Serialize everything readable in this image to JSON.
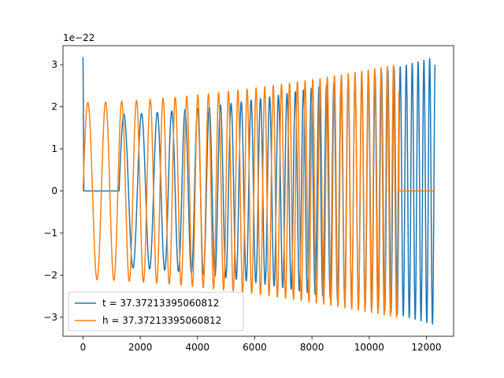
{
  "chart_data": {
    "type": "line",
    "y_offset_label": "1e−22",
    "y_scale": 1e-22,
    "xlim": [
      -700,
      12950
    ],
    "ylim": [
      -3.45e-22,
      3.45e-22
    ],
    "x_ticks": [
      0,
      2000,
      4000,
      6000,
      8000,
      10000,
      12000
    ],
    "x_tick_labels": [
      "0",
      "2000",
      "4000",
      "6000",
      "8000",
      "10000",
      "12000"
    ],
    "y_ticks": [
      -3e-22,
      -2e-22,
      -1e-22,
      0,
      1e-22,
      2e-22,
      3e-22
    ],
    "y_tick_labels": [
      "−3",
      "−2",
      "−1",
      "0",
      "1",
      "2",
      "3"
    ],
    "grid": false,
    "legend_position": "lower-left",
    "series": [
      {
        "name": "t = 37.37213395060812",
        "color": "#1f77b4",
        "signal": {
          "kind": "chirp",
          "zero_until": 1260,
          "end": 12300,
          "amp_start": 1.82e-22,
          "amp_end": 3.18e-22,
          "x_start": 1260,
          "freq_start": 0.0092,
          "freq_end": 0.032,
          "spike_at": 0,
          "spike_peak": 3.18e-22
        }
      },
      {
        "name": "h = 37.37213395060812",
        "color": "#ff7f0e",
        "signal": {
          "kind": "chirp",
          "zero_after": 11040,
          "end": 12300,
          "amp_start": 2.1e-22,
          "amp_end": 3.18e-22,
          "x_start": 0,
          "freq_start": 0.0092,
          "freq_end": 0.032
        }
      }
    ]
  }
}
